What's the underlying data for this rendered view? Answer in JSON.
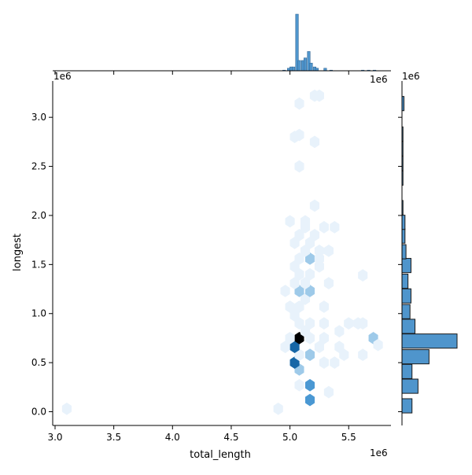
{
  "chart_data": {
    "type": "hexbin-joint",
    "xlabel": "total_length",
    "ylabel": "longest",
    "x_offset_label": "1e6",
    "y_offset_label": "1e6",
    "marg_x_offset_label": "1e6",
    "marg_y_offset_label": "1e6",
    "xlim": [
      2.98,
      5.86
    ],
    "ylim": [
      -0.14,
      3.37
    ],
    "x_ticks": [
      3.0,
      3.5,
      4.0,
      4.5,
      5.0,
      5.5
    ],
    "x_tick_labels": [
      "3.0",
      "3.5",
      "4.0",
      "4.5",
      "5.0",
      "5.5"
    ],
    "y_ticks": [
      0.0,
      0.5,
      1.0,
      1.5,
      2.0,
      2.5,
      3.0
    ],
    "y_tick_labels": [
      "0.0",
      "0.5",
      "1.0",
      "1.5",
      "2.0",
      "2.5",
      "3.0"
    ],
    "colors": {
      "light": "#e8f2fb",
      "mid": "#9ecae9",
      "strong": "#4a98d3",
      "dark": "#1666a6",
      "darkest": "#000000",
      "hist_fill": "#4f95cc",
      "hist_edge": "#1a1a1a"
    },
    "hexes": [
      {
        "x": 3.1,
        "y": 0.03,
        "c": 1
      },
      {
        "x": 4.9,
        "y": 0.03,
        "c": 1
      },
      {
        "x": 5.17,
        "y": 0.12,
        "c": 3
      },
      {
        "x": 5.17,
        "y": 0.27,
        "c": 3
      },
      {
        "x": 5.08,
        "y": 0.27,
        "c": 1
      },
      {
        "x": 5.08,
        "y": 0.43,
        "c": 2
      },
      {
        "x": 5.04,
        "y": 0.5,
        "c": 4
      },
      {
        "x": 5.08,
        "y": 0.58,
        "c": 1
      },
      {
        "x": 5.17,
        "y": 0.58,
        "c": 2
      },
      {
        "x": 5.04,
        "y": 0.66,
        "c": 4
      },
      {
        "x": 5.08,
        "y": 0.75,
        "c": 5
      },
      {
        "x": 5.0,
        "y": 0.75,
        "c": 1
      },
      {
        "x": 5.17,
        "y": 0.75,
        "c": 1
      },
      {
        "x": 5.13,
        "y": 0.82,
        "c": 1
      },
      {
        "x": 5.08,
        "y": 0.9,
        "c": 1
      },
      {
        "x": 5.17,
        "y": 0.9,
        "c": 1
      },
      {
        "x": 5.04,
        "y": 0.98,
        "c": 1
      },
      {
        "x": 5.08,
        "y": 1.07,
        "c": 1
      },
      {
        "x": 5.13,
        "y": 1.15,
        "c": 1
      },
      {
        "x": 5.08,
        "y": 1.23,
        "c": 2
      },
      {
        "x": 5.17,
        "y": 1.23,
        "c": 2
      },
      {
        "x": 5.13,
        "y": 1.31,
        "c": 1
      },
      {
        "x": 5.04,
        "y": 1.31,
        "c": 1
      },
      {
        "x": 5.08,
        "y": 1.4,
        "c": 1
      },
      {
        "x": 5.17,
        "y": 1.4,
        "c": 1
      },
      {
        "x": 5.04,
        "y": 1.48,
        "c": 1
      },
      {
        "x": 5.17,
        "y": 1.56,
        "c": 2
      },
      {
        "x": 5.08,
        "y": 1.56,
        "c": 1
      },
      {
        "x": 5.13,
        "y": 1.64,
        "c": 1
      },
      {
        "x": 5.25,
        "y": 1.64,
        "c": 1
      },
      {
        "x": 5.04,
        "y": 1.72,
        "c": 1
      },
      {
        "x": 5.17,
        "y": 1.72,
        "c": 1
      },
      {
        "x": 5.08,
        "y": 1.8,
        "c": 1
      },
      {
        "x": 5.21,
        "y": 1.8,
        "c": 1
      },
      {
        "x": 5.13,
        "y": 1.88,
        "c": 1
      },
      {
        "x": 5.29,
        "y": 1.88,
        "c": 1
      },
      {
        "x": 5.38,
        "y": 1.88,
        "c": 1
      },
      {
        "x": 5.0,
        "y": 1.94,
        "c": 1
      },
      {
        "x": 5.13,
        "y": 1.94,
        "c": 1
      },
      {
        "x": 5.21,
        "y": 2.1,
        "c": 1
      },
      {
        "x": 5.08,
        "y": 2.5,
        "c": 1
      },
      {
        "x": 5.21,
        "y": 2.75,
        "c": 1
      },
      {
        "x": 5.04,
        "y": 2.8,
        "c": 1
      },
      {
        "x": 5.08,
        "y": 2.82,
        "c": 1
      },
      {
        "x": 5.08,
        "y": 3.14,
        "c": 1
      },
      {
        "x": 5.21,
        "y": 3.22,
        "c": 1
      },
      {
        "x": 5.25,
        "y": 3.22,
        "c": 1
      },
      {
        "x": 5.62,
        "y": 0.58,
        "c": 1
      },
      {
        "x": 5.29,
        "y": 0.5,
        "c": 1
      },
      {
        "x": 5.38,
        "y": 0.5,
        "c": 1
      },
      {
        "x": 5.25,
        "y": 0.66,
        "c": 1
      },
      {
        "x": 5.42,
        "y": 0.66,
        "c": 1
      },
      {
        "x": 5.29,
        "y": 0.75,
        "c": 1
      },
      {
        "x": 5.71,
        "y": 0.75,
        "c": 2
      },
      {
        "x": 5.75,
        "y": 0.68,
        "c": 1
      },
      {
        "x": 5.5,
        "y": 0.9,
        "c": 1
      },
      {
        "x": 5.58,
        "y": 0.9,
        "c": 1
      },
      {
        "x": 5.62,
        "y": 0.9,
        "c": 1
      },
      {
        "x": 5.29,
        "y": 0.9,
        "c": 1
      },
      {
        "x": 5.33,
        "y": 0.2,
        "c": 1
      },
      {
        "x": 4.96,
        "y": 0.66,
        "c": 1
      },
      {
        "x": 5.46,
        "y": 0.58,
        "c": 1
      },
      {
        "x": 5.62,
        "y": 1.39,
        "c": 1
      },
      {
        "x": 5.33,
        "y": 1.31,
        "c": 1
      },
      {
        "x": 5.33,
        "y": 1.64,
        "c": 1
      },
      {
        "x": 5.25,
        "y": 1.48,
        "c": 1
      },
      {
        "x": 4.96,
        "y": 1.23,
        "c": 1
      },
      {
        "x": 5.0,
        "y": 1.07,
        "c": 1
      },
      {
        "x": 5.29,
        "y": 1.07,
        "c": 1
      },
      {
        "x": 5.25,
        "y": 1.56,
        "c": 1
      },
      {
        "x": 5.42,
        "y": 0.82,
        "c": 1
      }
    ],
    "marginal_x": {
      "bin_width": 0.024,
      "bins": [
        {
          "x": 4.95,
          "v": 0.5
        },
        {
          "x": 4.99,
          "v": 2
        },
        {
          "x": 5.01,
          "v": 3
        },
        {
          "x": 5.03,
          "v": 3
        },
        {
          "x": 5.06,
          "v": 44
        },
        {
          "x": 5.08,
          "v": 8
        },
        {
          "x": 5.11,
          "v": 8
        },
        {
          "x": 5.13,
          "v": 10
        },
        {
          "x": 5.16,
          "v": 15
        },
        {
          "x": 5.18,
          "v": 6
        },
        {
          "x": 5.21,
          "v": 3
        },
        {
          "x": 5.23,
          "v": 2
        },
        {
          "x": 5.3,
          "v": 2
        },
        {
          "x": 5.35,
          "v": 0.5
        },
        {
          "x": 5.62,
          "v": 0.5
        },
        {
          "x": 5.67,
          "v": 0.5
        },
        {
          "x": 5.72,
          "v": 0.5
        }
      ],
      "vmax": 44
    },
    "marginal_y": {
      "bin_width": 0.145,
      "bins": [
        {
          "y": 0.06,
          "v": 10
        },
        {
          "y": 0.26,
          "v": 16
        },
        {
          "y": 0.41,
          "v": 10
        },
        {
          "y": 0.56,
          "v": 27
        },
        {
          "y": 0.72,
          "v": 55
        },
        {
          "y": 0.87,
          "v": 13
        },
        {
          "y": 1.02,
          "v": 8
        },
        {
          "y": 1.18,
          "v": 9
        },
        {
          "y": 1.33,
          "v": 6
        },
        {
          "y": 1.49,
          "v": 9
        },
        {
          "y": 1.63,
          "v": 4
        },
        {
          "y": 1.79,
          "v": 3
        },
        {
          "y": 1.93,
          "v": 3
        },
        {
          "y": 2.08,
          "v": 1
        },
        {
          "y": 2.38,
          "v": 1
        },
        {
          "y": 2.53,
          "v": 1
        },
        {
          "y": 2.68,
          "v": 1
        },
        {
          "y": 2.83,
          "v": 1
        },
        {
          "y": 3.14,
          "v": 2
        }
      ],
      "vmax": 55
    }
  }
}
